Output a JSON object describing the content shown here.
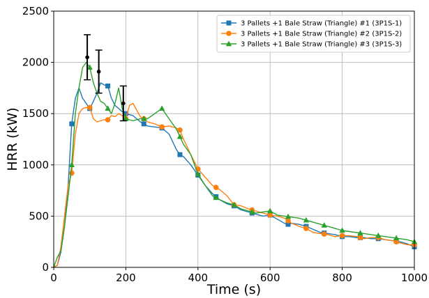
{
  "chart_data": {
    "type": "line",
    "xlabel": "Time (s)",
    "ylabel": "HRR (kW)",
    "xlim": [
      0,
      1000
    ],
    "ylim": [
      0,
      2500
    ],
    "xticks": [
      0,
      200,
      400,
      600,
      800,
      1000
    ],
    "yticks": [
      0,
      500,
      1000,
      1500,
      2000,
      2500
    ],
    "grid": true,
    "legend_position": "top-right",
    "series": [
      {
        "name": "3 Pallets +1 Bale Straw (Triangle) #1 (3P1S-1)",
        "color": "#1f77b4",
        "marker": "square",
        "x": [
          0,
          10,
          20,
          30,
          40,
          50,
          60,
          70,
          80,
          90,
          100,
          110,
          120,
          130,
          140,
          150,
          160,
          170,
          180,
          190,
          200,
          220,
          240,
          250,
          260,
          280,
          300,
          320,
          340,
          350,
          360,
          380,
          400,
          420,
          440,
          460,
          480,
          500,
          520,
          540,
          560,
          580,
          600,
          620,
          640,
          650,
          660,
          680,
          700,
          720,
          740,
          760,
          780,
          800,
          820,
          840,
          860,
          880,
          900,
          920,
          940,
          960,
          980,
          1000
        ],
        "y": [
          0,
          20,
          150,
          400,
          800,
          1400,
          1650,
          1750,
          1650,
          1600,
          1550,
          1620,
          1700,
          1800,
          1780,
          1770,
          1650,
          1580,
          1550,
          1520,
          1500,
          1480,
          1420,
          1400,
          1380,
          1370,
          1360,
          1300,
          1150,
          1100,
          1080,
          1000,
          900,
          800,
          720,
          660,
          620,
          600,
          560,
          540,
          520,
          500,
          510,
          470,
          430,
          420,
          430,
          420,
          400,
          370,
          340,
          330,
          320,
          300,
          300,
          290,
          290,
          280,
          280,
          270,
          260,
          250,
          230,
          200
        ],
        "marker_x": [
          50,
          100,
          150,
          200,
          250,
          300,
          350,
          400,
          450,
          500,
          550,
          600,
          650,
          700,
          750,
          800,
          850,
          900,
          950,
          1000
        ]
      },
      {
        "name": "3 Pallets +1 Bale Straw (Triangle) #2 (3P1S-2)",
        "color": "#ff7f0e",
        "marker": "circle",
        "x": [
          0,
          10,
          20,
          30,
          40,
          50,
          60,
          70,
          80,
          90,
          100,
          110,
          120,
          130,
          140,
          150,
          160,
          170,
          180,
          190,
          200,
          210,
          220,
          240,
          250,
          260,
          280,
          300,
          320,
          340,
          350,
          360,
          380,
          400,
          420,
          440,
          460,
          480,
          500,
          520,
          540,
          560,
          580,
          600,
          620,
          640,
          660,
          680,
          700,
          720,
          740,
          760,
          780,
          800,
          820,
          840,
          860,
          880,
          900,
          920,
          940,
          960,
          980,
          1000
        ],
        "y": [
          0,
          20,
          200,
          500,
          800,
          920,
          1300,
          1500,
          1550,
          1560,
          1560,
          1450,
          1420,
          1430,
          1440,
          1440,
          1480,
          1470,
          1500,
          1480,
          1450,
          1580,
          1600,
          1470,
          1450,
          1420,
          1400,
          1370,
          1380,
          1360,
          1340,
          1250,
          1100,
          960,
          880,
          800,
          760,
          700,
          610,
          600,
          570,
          550,
          530,
          510,
          500,
          480,
          430,
          400,
          380,
          340,
          330,
          320,
          300,
          310,
          310,
          300,
          280,
          290,
          290,
          270,
          260,
          240,
          220,
          220
        ],
        "marker_x": [
          50,
          100,
          150,
          200,
          250,
          300,
          350,
          400,
          450,
          500,
          550,
          600,
          650,
          700,
          750,
          800,
          850,
          900,
          950,
          1000
        ]
      },
      {
        "name": "3 Pallets +1 Bale Straw (Triangle) #3 (3P1S-3)",
        "color": "#2ca02c",
        "marker": "triangle",
        "x": [
          0,
          10,
          20,
          30,
          40,
          50,
          60,
          70,
          80,
          90,
          100,
          110,
          120,
          130,
          140,
          150,
          160,
          170,
          180,
          190,
          200,
          220,
          240,
          260,
          280,
          300,
          320,
          340,
          360,
          380,
          400,
          420,
          440,
          460,
          480,
          500,
          520,
          540,
          560,
          580,
          600,
          620,
          640,
          660,
          680,
          700,
          720,
          740,
          760,
          780,
          800,
          820,
          840,
          860,
          880,
          900,
          920,
          940,
          960,
          980,
          1000
        ],
        "y": [
          0,
          100,
          160,
          400,
          700,
          1000,
          1500,
          1750,
          1950,
          2000,
          1950,
          1800,
          1700,
          1620,
          1600,
          1550,
          1500,
          1600,
          1750,
          1550,
          1450,
          1430,
          1450,
          1450,
          1500,
          1550,
          1450,
          1350,
          1200,
          1100,
          910,
          800,
          700,
          660,
          630,
          610,
          570,
          550,
          530,
          540,
          550,
          510,
          500,
          490,
          480,
          460,
          440,
          420,
          400,
          380,
          360,
          350,
          340,
          330,
          320,
          310,
          300,
          290,
          280,
          270,
          250
        ],
        "marker_x": [
          50,
          100,
          150,
          200,
          250,
          300,
          350,
          400,
          450,
          500,
          550,
          600,
          650,
          700,
          750,
          800,
          850,
          900,
          950,
          1000
        ]
      }
    ],
    "error_bars": {
      "color": "#000000",
      "points": [
        {
          "x": 93,
          "y": 2050,
          "lower": 1830,
          "upper": 2270
        },
        {
          "x": 125,
          "y": 1910,
          "lower": 1700,
          "upper": 2120
        },
        {
          "x": 193,
          "y": 1600,
          "lower": 1430,
          "upper": 1770
        }
      ]
    }
  }
}
